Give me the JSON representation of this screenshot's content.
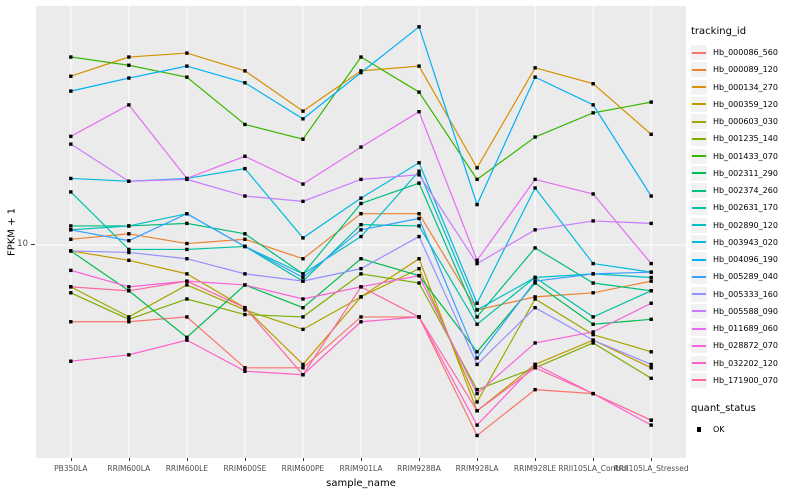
{
  "axes": {
    "y_tick_label": "10"
  },
  "legend": {
    "tracking_title": "tracking_id",
    "quant_title": "quant_status",
    "quant_entries": [
      {
        "label": "OK"
      }
    ]
  },
  "chart_data": {
    "type": "line",
    "xlabel": "sample_name",
    "ylabel": "FPKM + 1",
    "y_scale": "log10",
    "y_ticks": [
      10
    ],
    "grid": "on",
    "legend_position": "right",
    "point_shape": "square",
    "point_color": "#000000",
    "categories": [
      "PB350LA",
      "RRIM600LA",
      "RRIM600LE",
      "RRIM600SE",
      "RRIM600PE",
      "RRIM901LA",
      "RRIM928BA",
      "RRIM928LA",
      "RRIM928LE",
      "RRII105LA_Control",
      "RRII105LA_Stressed"
    ],
    "series": [
      {
        "name": "Hb_000086_560",
        "color": "#F8766D",
        "values": [
          5.9,
          5.9,
          6.1,
          4.3,
          4.3,
          6.1,
          6.1,
          2.7,
          3.7,
          3.6,
          3.0
        ]
      },
      {
        "name": "Hb_000089_120",
        "color": "#EA8331",
        "values": [
          10.4,
          10.8,
          10.1,
          10.4,
          9.1,
          12.4,
          12.4,
          6.4,
          7.0,
          7.2,
          7.8
        ]
      },
      {
        "name": "Hb_000134_270",
        "color": "#D89000",
        "values": [
          31.9,
          36.4,
          37.4,
          33.1,
          25.1,
          33.1,
          34.2,
          17.0,
          33.8,
          30.3,
          21.4
        ]
      },
      {
        "name": "Hb_000359_120",
        "color": "#C09B00",
        "values": [
          9.6,
          9.0,
          8.2,
          6.5,
          4.4,
          7.0,
          9.1,
          3.2,
          4.4,
          5.2,
          4.3
        ]
      },
      {
        "name": "Hb_000603_030",
        "color": "#A3A500",
        "values": [
          7.5,
          6.1,
          7.6,
          6.4,
          5.6,
          7.0,
          8.5,
          3.4,
          6.9,
          5.4,
          4.8
        ]
      },
      {
        "name": "Hb_001235_140",
        "color": "#7CAE00",
        "values": [
          7.2,
          6.0,
          6.9,
          6.2,
          6.1,
          8.2,
          7.7,
          3.7,
          4.3,
          5.1,
          4.0
        ]
      },
      {
        "name": "Hb_001433_070",
        "color": "#39B600",
        "values": [
          36.4,
          34.4,
          31.7,
          22.9,
          20.7,
          36.4,
          28.6,
          15.7,
          21.0,
          24.8,
          26.7
        ]
      },
      {
        "name": "Hb_002311_290",
        "color": "#00BB4E",
        "values": [
          9.6,
          7.3,
          5.3,
          7.6,
          6.5,
          9.1,
          8.1,
          4.8,
          7.7,
          5.8,
          6.0
        ]
      },
      {
        "name": "Hb_002374_260",
        "color": "#00BF7D",
        "values": [
          11.4,
          11.4,
          11.6,
          10.8,
          8.2,
          13.3,
          15.3,
          6.1,
          9.8,
          7.7,
          7.3
        ]
      },
      {
        "name": "Hb_002631_170",
        "color": "#00C1A3",
        "values": [
          14.4,
          9.7,
          9.7,
          9.9,
          7.8,
          11.5,
          11.4,
          5.8,
          8.0,
          6.1,
          7.3
        ]
      },
      {
        "name": "Hb_002890_120",
        "color": "#00BFC4",
        "values": [
          11.1,
          11.4,
          12.4,
          9.9,
          8.2,
          10.6,
          16.6,
          6.4,
          8.0,
          8.2,
          8.0
        ]
      },
      {
        "name": "Hb_003943_020",
        "color": "#00BAE0",
        "values": [
          15.8,
          15.5,
          15.8,
          16.9,
          10.5,
          13.8,
          17.6,
          6.7,
          14.8,
          8.8,
          8.3
        ]
      },
      {
        "name": "Hb_004096_190",
        "color": "#00B0F6",
        "values": [
          28.8,
          31.5,
          34.2,
          30.5,
          23.8,
          32.7,
          44.8,
          13.2,
          31.7,
          26.2,
          14.0
        ]
      },
      {
        "name": "Hb_005289_040",
        "color": "#35A2FF",
        "values": [
          11.1,
          10.3,
          12.4,
          9.9,
          8.0,
          11.1,
          12.0,
          4.6,
          7.8,
          8.2,
          8.3
        ]
      },
      {
        "name": "Hb_005333_160",
        "color": "#9590FF",
        "values": [
          9.6,
          9.5,
          9.1,
          8.2,
          7.8,
          8.5,
          10.6,
          4.4,
          6.5,
          5.2,
          4.4
        ]
      },
      {
        "name": "Hb_005588_090",
        "color": "#C77CFF",
        "values": [
          20.0,
          15.5,
          15.7,
          14.0,
          13.5,
          15.7,
          16.2,
          8.8,
          11.1,
          11.8,
          11.6
        ]
      },
      {
        "name": "Hb_011689_060",
        "color": "#E76BF3",
        "values": [
          21.1,
          26.2,
          15.8,
          18.4,
          15.2,
          19.6,
          25.0,
          9.0,
          15.7,
          14.2,
          8.8
        ]
      },
      {
        "name": "Hb_028872_070",
        "color": "#FA62DB",
        "values": [
          8.4,
          7.5,
          7.8,
          7.6,
          6.9,
          7.5,
          8.1,
          3.6,
          5.1,
          5.5,
          6.7
        ]
      },
      {
        "name": "Hb_032202_120",
        "color": "#FF61CC",
        "values": [
          4.5,
          4.7,
          5.2,
          4.2,
          4.1,
          5.9,
          6.1,
          2.9,
          4.4,
          3.6,
          2.9
        ]
      },
      {
        "name": "Hb_171900_070",
        "color": "#FF67A4",
        "values": [
          7.5,
          7.3,
          7.8,
          6.5,
          4.1,
          7.5,
          6.1,
          3.2,
          4.3,
          3.6,
          3.0
        ]
      }
    ]
  }
}
